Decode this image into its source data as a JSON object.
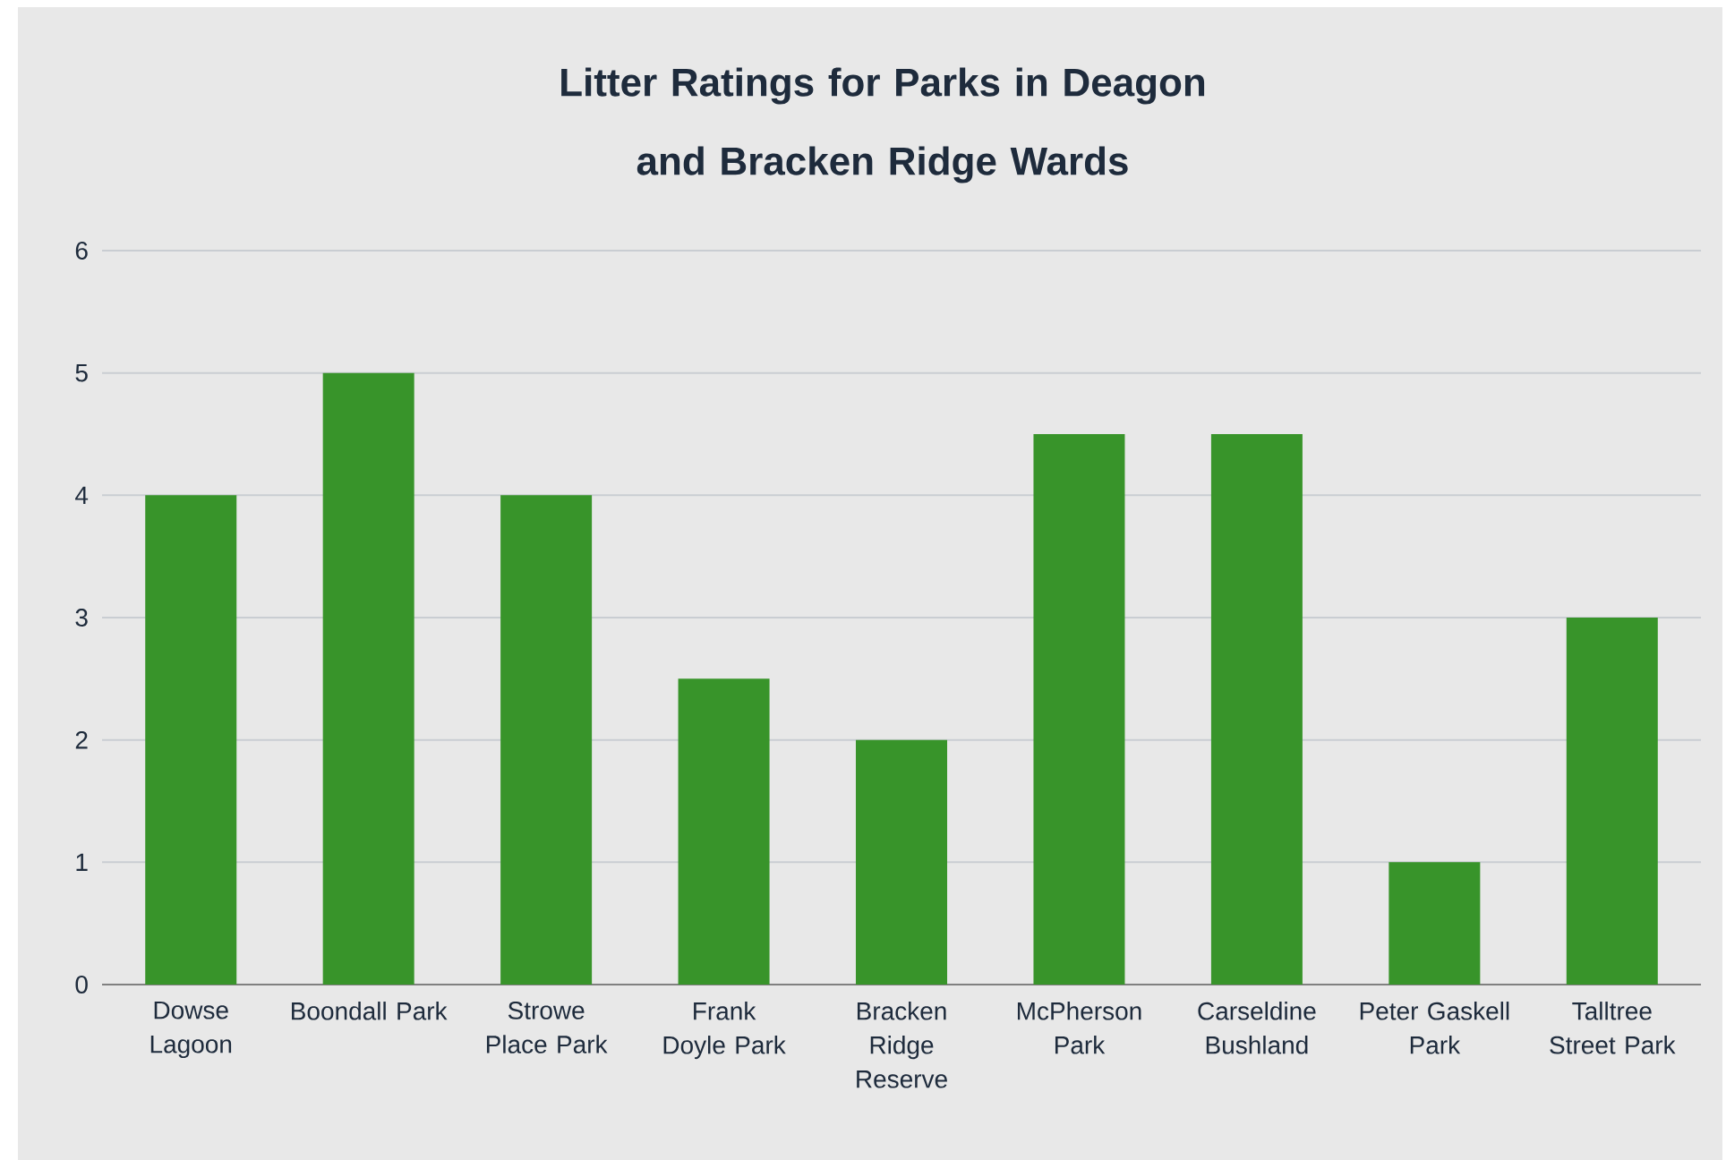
{
  "chart_data": {
    "type": "bar",
    "title": "Litter Ratings for Parks in Deagon and Bracken Ridge Wards",
    "categories": [
      "Dowse Lagoon",
      "Boondall Park",
      "Strowe Place Park",
      "Frank Doyle Park",
      "Bracken Ridge Reserve",
      "McPherson Park",
      "Carseldine Bushland",
      "Peter Gaskell Park",
      "Talltree Street Park"
    ],
    "values": [
      4,
      5,
      4,
      2.5,
      2,
      4.5,
      4.5,
      1,
      3
    ],
    "color": "#38942a",
    "ylim": [
      0,
      6
    ],
    "yticks": [
      0,
      1,
      2,
      3,
      4,
      5,
      6
    ],
    "grid": "y"
  }
}
